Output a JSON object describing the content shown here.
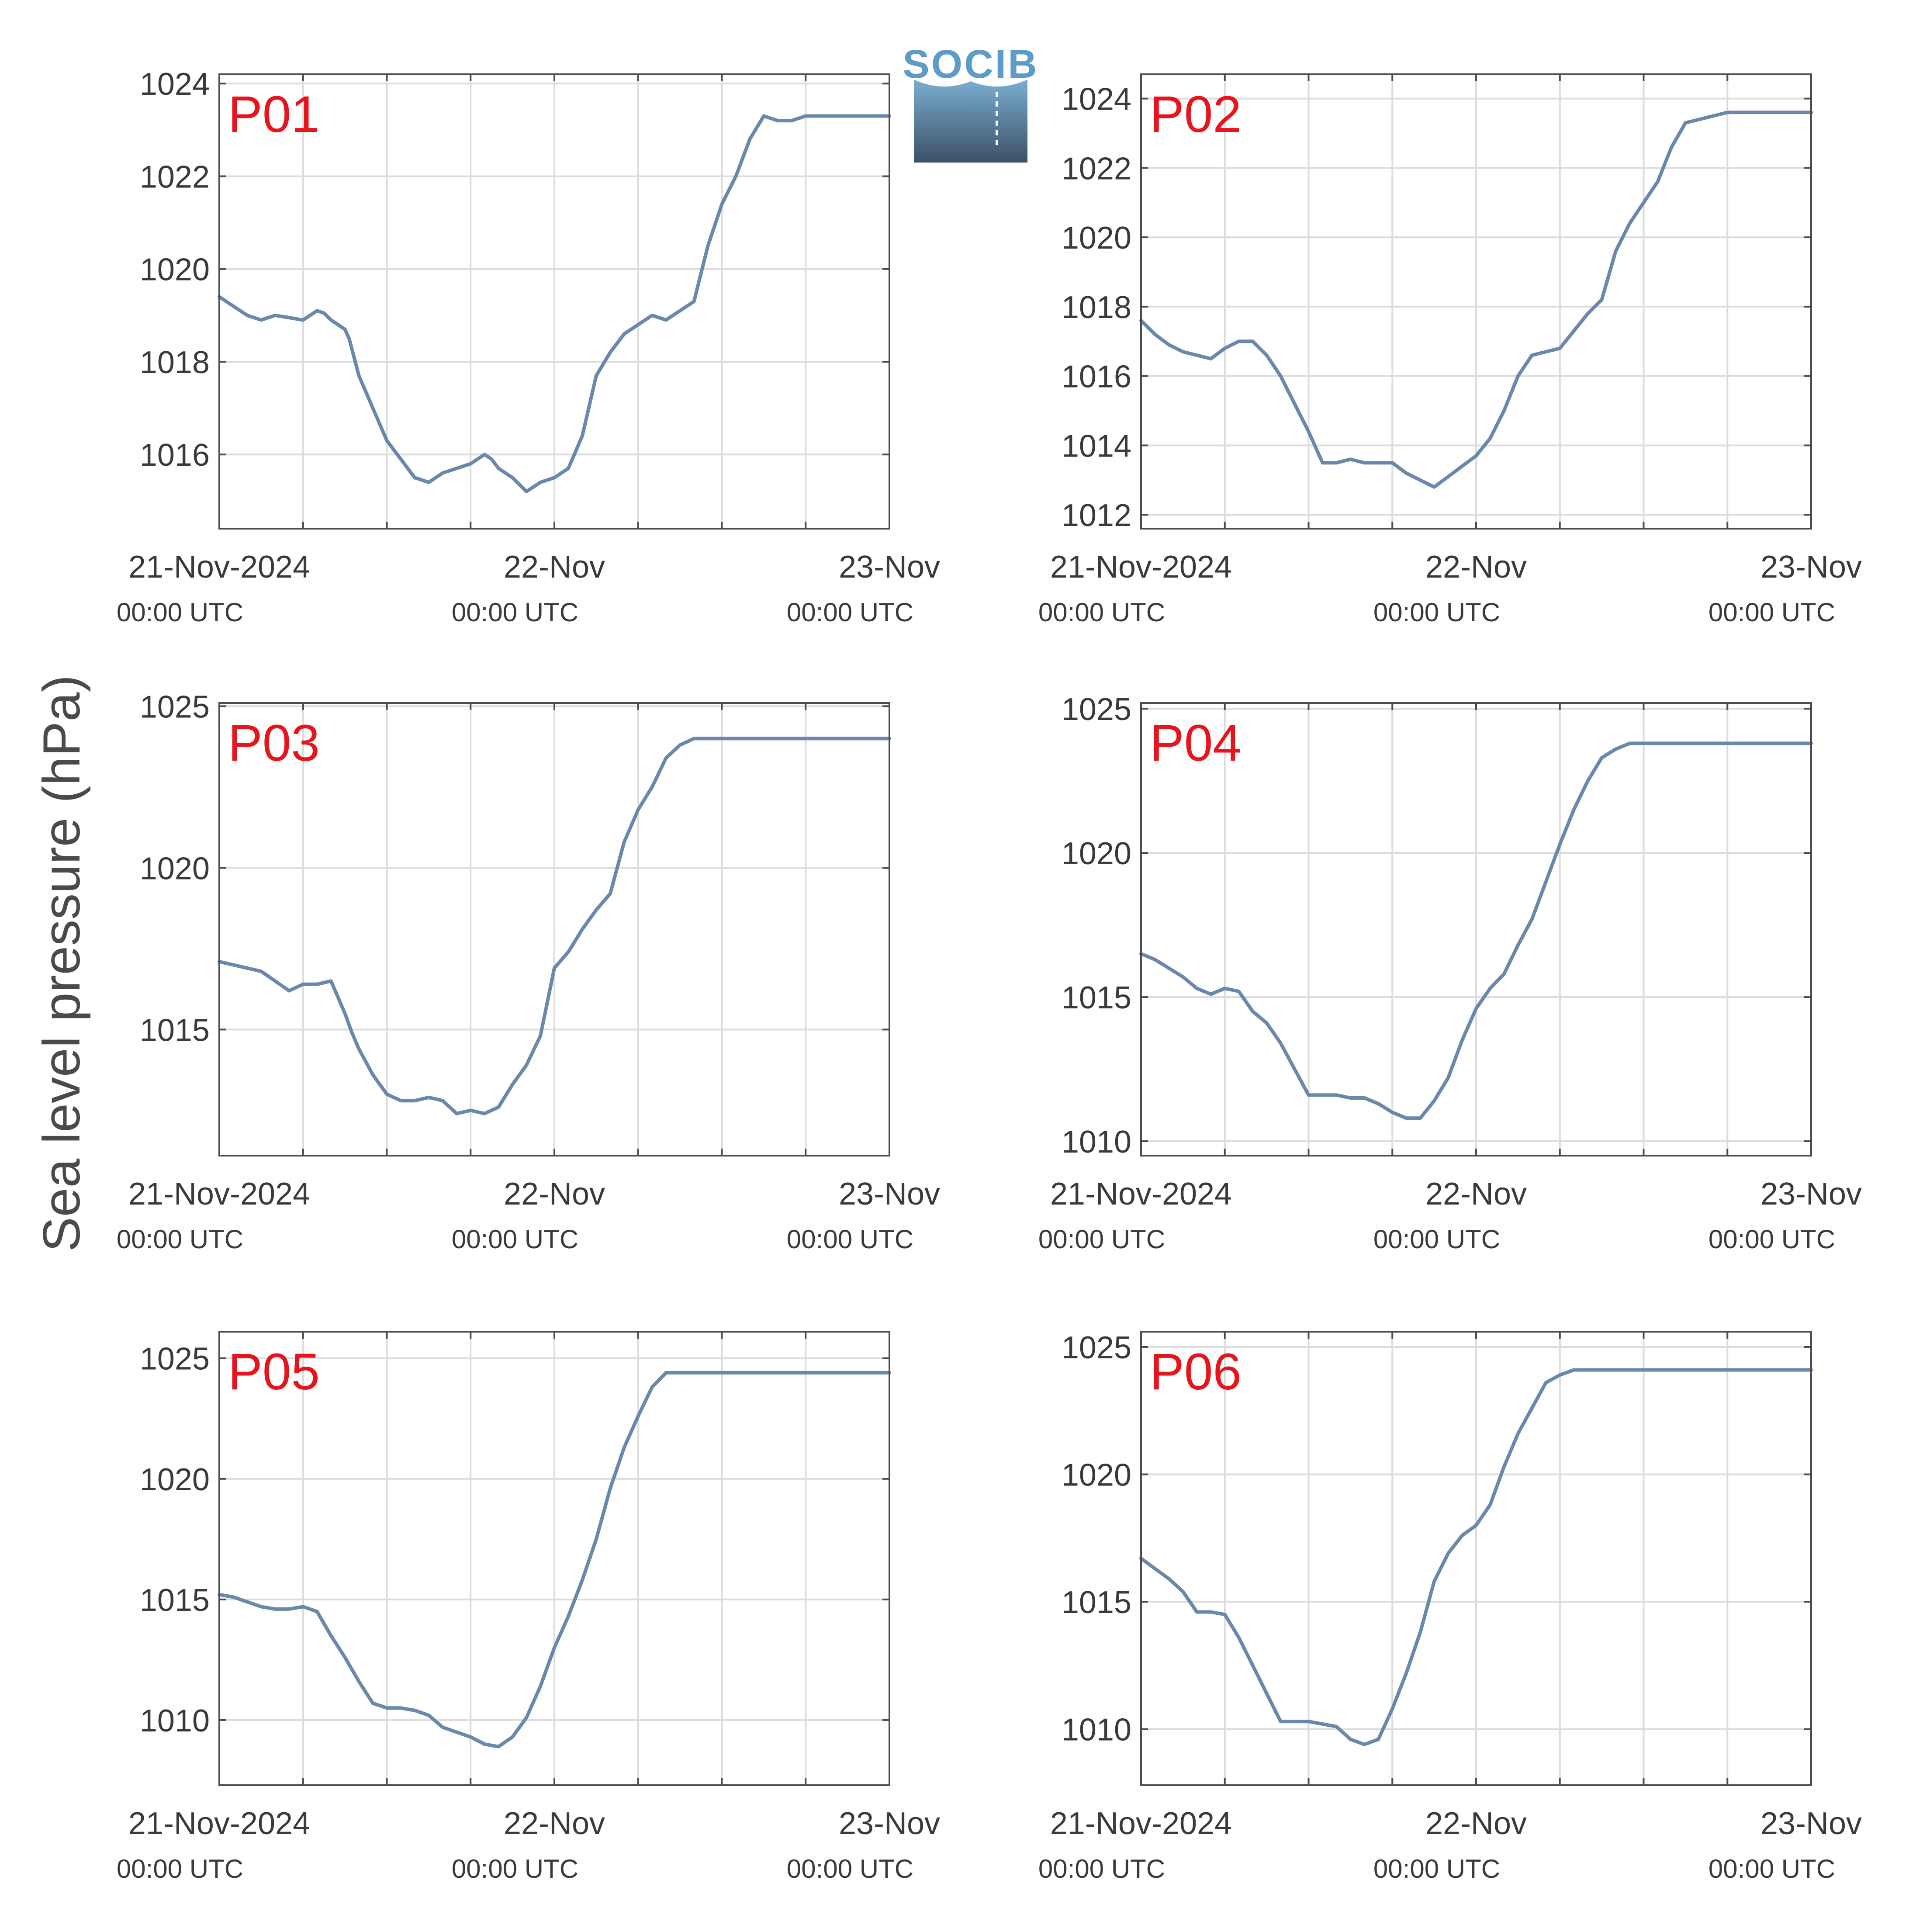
{
  "figure": {
    "ylabel": "Sea level pressure (hPa)",
    "logo_text": "SOCIB",
    "colors": {
      "line": "#6a88ab",
      "grid": "#dcdcdc",
      "axis": "#4d4d4d",
      "panel_label": "#e8141c",
      "tick_text": "#3a3a3a",
      "ylabel": "#4a4a4a",
      "logo_top": "#7aaed0",
      "logo_bottom": "#3c5068"
    }
  },
  "chart_data": [
    {
      "type": "line",
      "panel_label": "P01",
      "xlabel": "",
      "ylabel": "",
      "x_unit": "hours since 21-Nov-2024 00:00 UTC",
      "xlim": [
        0,
        48
      ],
      "ylim": [
        1014.4,
        1024.2
      ],
      "yticks": [
        1016,
        1018,
        1020,
        1022,
        1024
      ],
      "xticks": [
        0,
        6,
        12,
        18,
        24,
        30,
        36,
        42,
        48
      ],
      "xticklabels": [
        {
          "x": 0,
          "date": "21-Nov-2024",
          "time": "00:00 UTC"
        },
        {
          "x": 24,
          "date": "22-Nov",
          "time": "00:00 UTC"
        },
        {
          "x": 48,
          "date": "23-Nov",
          "time": "00:00 UTC"
        }
      ],
      "grid": true,
      "series": [
        {
          "x": [
            0,
            1,
            2,
            3,
            3.5,
            4,
            5,
            6,
            7,
            7.5,
            8,
            9,
            9.3,
            10,
            11,
            12,
            13,
            14,
            15,
            16,
            17,
            18,
            19,
            19.5,
            20,
            21,
            22,
            23,
            24,
            25,
            26,
            27,
            28,
            29,
            30,
            31,
            32,
            33,
            34,
            35,
            36,
            37,
            38,
            39,
            40,
            41,
            42,
            43,
            44,
            45,
            46,
            47,
            48
          ],
          "y": [
            1019.4,
            1019.2,
            1019.0,
            1018.9,
            1018.95,
            1019.0,
            1018.95,
            1018.9,
            1019.1,
            1019.05,
            1018.9,
            1018.7,
            1018.5,
            1017.7,
            1017.0,
            1016.3,
            1015.9,
            1015.5,
            1015.4,
            1015.6,
            1015.7,
            1015.8,
            1016.0,
            1015.9,
            1015.7,
            1015.5,
            1015.2,
            1015.4,
            1015.5,
            1015.7,
            1016.4,
            1017.7,
            1018.2,
            1018.6,
            1018.8,
            1019.0,
            1018.9,
            1019.1,
            1019.3,
            1020.5,
            1021.4,
            1022.0,
            1022.8,
            1023.3,
            1023.2,
            1023.2,
            1023.3,
            1023.3,
            1023.3,
            1023.3,
            1023.3,
            1023.3,
            1023.3
          ]
        }
      ]
    },
    {
      "type": "line",
      "panel_label": "P02",
      "xlabel": "",
      "ylabel": "",
      "x_unit": "hours since 21-Nov-2024 00:00 UTC",
      "xlim": [
        0,
        48
      ],
      "ylim": [
        1011.6,
        1024.7
      ],
      "yticks": [
        1012,
        1014,
        1016,
        1018,
        1020,
        1022,
        1024
      ],
      "xticks": [
        0,
        6,
        12,
        18,
        24,
        30,
        36,
        42,
        48
      ],
      "xticklabels": [
        {
          "x": 0,
          "date": "21-Nov-2024",
          "time": "00:00 UTC"
        },
        {
          "x": 24,
          "date": "22-Nov",
          "time": "00:00 UTC"
        },
        {
          "x": 48,
          "date": "23-Nov",
          "time": "00:00 UTC"
        }
      ],
      "grid": true,
      "series": [
        {
          "x": [
            0,
            1,
            2,
            3,
            4,
            5,
            6,
            7,
            8,
            9,
            9.5,
            10,
            11,
            12,
            13,
            14,
            15,
            16,
            17,
            18,
            19,
            20,
            21,
            22,
            23,
            24,
            25,
            26,
            27,
            28,
            29,
            30,
            31,
            32,
            33,
            34,
            35,
            36,
            37,
            38,
            39,
            40,
            41,
            42,
            43,
            44,
            45,
            46,
            47,
            48
          ],
          "y": [
            1017.6,
            1017.2,
            1016.9,
            1016.7,
            1016.6,
            1016.5,
            1016.8,
            1017.0,
            1017.0,
            1016.6,
            1016.3,
            1016.0,
            1015.2,
            1014.4,
            1013.5,
            1013.5,
            1013.6,
            1013.5,
            1013.5,
            1013.5,
            1013.2,
            1013.0,
            1012.8,
            1013.1,
            1013.4,
            1013.7,
            1014.2,
            1015.0,
            1016.0,
            1016.6,
            1016.7,
            1016.8,
            1017.3,
            1017.8,
            1018.2,
            1019.6,
            1020.4,
            1021.0,
            1021.6,
            1022.6,
            1023.3,
            1023.4,
            1023.5,
            1023.6,
            1023.6,
            1023.6,
            1023.6,
            1023.6,
            1023.6,
            1023.6
          ]
        }
      ]
    },
    {
      "type": "line",
      "panel_label": "P03",
      "xlabel": "",
      "ylabel": "",
      "x_unit": "hours since 21-Nov-2024 00:00 UTC",
      "xlim": [
        0,
        48
      ],
      "ylim": [
        1011.1,
        1025.1
      ],
      "yticks": [
        1015,
        1020,
        1025
      ],
      "xticks": [
        0,
        6,
        12,
        18,
        24,
        30,
        36,
        42,
        48
      ],
      "xticklabels": [
        {
          "x": 0,
          "date": "21-Nov-2024",
          "time": "00:00 UTC"
        },
        {
          "x": 24,
          "date": "22-Nov",
          "time": "00:00 UTC"
        },
        {
          "x": 48,
          "date": "23-Nov",
          "time": "00:00 UTC"
        }
      ],
      "grid": true,
      "series": [
        {
          "x": [
            0,
            1,
            2,
            3,
            4,
            5,
            6,
            7,
            8,
            9,
            9.5,
            10,
            11,
            12,
            13,
            14,
            15,
            16,
            17,
            18,
            19,
            20,
            21,
            22,
            23,
            24,
            25,
            26,
            27,
            28,
            29,
            30,
            31,
            32,
            33,
            34,
            35,
            36,
            37,
            38,
            39,
            40,
            41,
            42,
            43,
            44,
            45,
            46,
            47,
            48
          ],
          "y": [
            1017.1,
            1017.0,
            1016.9,
            1016.8,
            1016.5,
            1016.2,
            1016.4,
            1016.4,
            1016.5,
            1015.5,
            1014.9,
            1014.4,
            1013.6,
            1013.0,
            1012.8,
            1012.8,
            1012.9,
            1012.8,
            1012.4,
            1012.5,
            1012.4,
            1012.6,
            1013.3,
            1013.9,
            1014.8,
            1016.9,
            1017.4,
            1018.1,
            1018.7,
            1019.2,
            1020.8,
            1021.8,
            1022.5,
            1023.4,
            1023.8,
            1024.0,
            1024.0,
            1024.0,
            1024.0,
            1024.0,
            1024.0,
            1024.0,
            1024.0,
            1024.0,
            1024.0,
            1024.0,
            1024.0,
            1024.0,
            1024.0,
            1024.0
          ]
        }
      ]
    },
    {
      "type": "line",
      "panel_label": "P04",
      "xlabel": "",
      "ylabel": "",
      "x_unit": "hours since 21-Nov-2024 00:00 UTC",
      "xlim": [
        0,
        48
      ],
      "ylim": [
        1009.5,
        1025.2
      ],
      "yticks": [
        1010,
        1015,
        1020,
        1025
      ],
      "xticks": [
        0,
        6,
        12,
        18,
        24,
        30,
        36,
        42,
        48
      ],
      "xticklabels": [
        {
          "x": 0,
          "date": "21-Nov-2024",
          "time": "00:00 UTC"
        },
        {
          "x": 24,
          "date": "22-Nov",
          "time": "00:00 UTC"
        },
        {
          "x": 48,
          "date": "23-Nov",
          "time": "00:00 UTC"
        }
      ],
      "grid": true,
      "series": [
        {
          "x": [
            0,
            1,
            2,
            3,
            4,
            5,
            6,
            7,
            8,
            9,
            10,
            11,
            12,
            13,
            14,
            15,
            16,
            17,
            18,
            19,
            20,
            21,
            22,
            23,
            24,
            25,
            26,
            27,
            28,
            29,
            30,
            31,
            32,
            33,
            34,
            35,
            36,
            37,
            38,
            39,
            40,
            41,
            42,
            43,
            44,
            45,
            46,
            47,
            48
          ],
          "y": [
            1016.5,
            1016.3,
            1016.0,
            1015.7,
            1015.3,
            1015.1,
            1015.3,
            1015.2,
            1014.5,
            1014.1,
            1013.4,
            1012.5,
            1011.6,
            1011.6,
            1011.6,
            1011.5,
            1011.5,
            1011.3,
            1011.0,
            1010.8,
            1010.8,
            1011.4,
            1012.2,
            1013.5,
            1014.6,
            1015.3,
            1015.8,
            1016.8,
            1017.7,
            1019.0,
            1020.3,
            1021.5,
            1022.5,
            1023.3,
            1023.6,
            1023.8,
            1023.8,
            1023.8,
            1023.8,
            1023.8,
            1023.8,
            1023.8,
            1023.8,
            1023.8,
            1023.8,
            1023.8,
            1023.8,
            1023.8,
            1023.8
          ]
        }
      ]
    },
    {
      "type": "line",
      "panel_label": "P05",
      "xlabel": "",
      "ylabel": "",
      "x_unit": "hours since 21-Nov-2024 00:00 UTC",
      "xlim": [
        0,
        48
      ],
      "ylim": [
        1007.3,
        1026.1
      ],
      "yticks": [
        1010,
        1015,
        1020,
        1025
      ],
      "xticks": [
        0,
        6,
        12,
        18,
        24,
        30,
        36,
        42,
        48
      ],
      "xticklabels": [
        {
          "x": 0,
          "date": "21-Nov-2024",
          "time": "00:00 UTC"
        },
        {
          "x": 24,
          "date": "22-Nov",
          "time": "00:00 UTC"
        },
        {
          "x": 48,
          "date": "23-Nov",
          "time": "00:00 UTC"
        }
      ],
      "grid": true,
      "series": [
        {
          "x": [
            0,
            1,
            2,
            3,
            4,
            5,
            6,
            7,
            8,
            9,
            10,
            11,
            12,
            13,
            14,
            15,
            16,
            17,
            18,
            19,
            20,
            21,
            22,
            23,
            24,
            25,
            26,
            27,
            28,
            29,
            30,
            31,
            32,
            33,
            34,
            35,
            36,
            37,
            38,
            39,
            40,
            41,
            42,
            43,
            44,
            45,
            46,
            47,
            48
          ],
          "y": [
            1015.2,
            1015.1,
            1014.9,
            1014.7,
            1014.6,
            1014.6,
            1014.7,
            1014.5,
            1013.5,
            1012.6,
            1011.6,
            1010.7,
            1010.5,
            1010.5,
            1010.4,
            1010.2,
            1009.7,
            1009.5,
            1009.3,
            1009.0,
            1008.9,
            1009.3,
            1010.1,
            1011.4,
            1013.0,
            1014.3,
            1015.8,
            1017.5,
            1019.6,
            1021.3,
            1022.6,
            1023.8,
            1024.4,
            1024.4,
            1024.4,
            1024.4,
            1024.4,
            1024.4,
            1024.4,
            1024.4,
            1024.4,
            1024.4,
            1024.4,
            1024.4,
            1024.4,
            1024.4,
            1024.4,
            1024.4,
            1024.4
          ]
        }
      ]
    },
    {
      "type": "line",
      "panel_label": "P06",
      "xlabel": "",
      "ylabel": "",
      "x_unit": "hours since 21-Nov-2024 00:00 UTC",
      "xlim": [
        0,
        48
      ],
      "ylim": [
        1007.8,
        1025.6
      ],
      "yticks": [
        1010,
        1015,
        1020,
        1025
      ],
      "xticks": [
        0,
        6,
        12,
        18,
        24,
        30,
        36,
        42,
        48
      ],
      "xticklabels": [
        {
          "x": 0,
          "date": "21-Nov-2024",
          "time": "00:00 UTC"
        },
        {
          "x": 24,
          "date": "22-Nov",
          "time": "00:00 UTC"
        },
        {
          "x": 48,
          "date": "23-Nov",
          "time": "00:00 UTC"
        }
      ],
      "grid": true,
      "series": [
        {
          "x": [
            0,
            1,
            2,
            3,
            4,
            5,
            6,
            7,
            8,
            9,
            10,
            11,
            12,
            13,
            14,
            15,
            16,
            17,
            18,
            19,
            20,
            21,
            22,
            23,
            24,
            25,
            26,
            27,
            28,
            29,
            30,
            31,
            32,
            33,
            34,
            35,
            36,
            37,
            38,
            39,
            40,
            41,
            42,
            43,
            44,
            45,
            46,
            47,
            48
          ],
          "y": [
            1016.7,
            1016.3,
            1015.9,
            1015.4,
            1014.6,
            1014.6,
            1014.5,
            1013.6,
            1012.5,
            1011.4,
            1010.3,
            1010.3,
            1010.3,
            1010.2,
            1010.1,
            1009.6,
            1009.4,
            1009.6,
            1010.8,
            1012.2,
            1013.8,
            1015.8,
            1016.9,
            1017.6,
            1018.0,
            1018.8,
            1020.3,
            1021.6,
            1022.6,
            1023.6,
            1023.9,
            1024.1,
            1024.1,
            1024.1,
            1024.1,
            1024.1,
            1024.1,
            1024.1,
            1024.1,
            1024.1,
            1024.1,
            1024.1,
            1024.1,
            1024.1,
            1024.1,
            1024.1,
            1024.1,
            1024.1,
            1024.1
          ]
        }
      ]
    }
  ]
}
